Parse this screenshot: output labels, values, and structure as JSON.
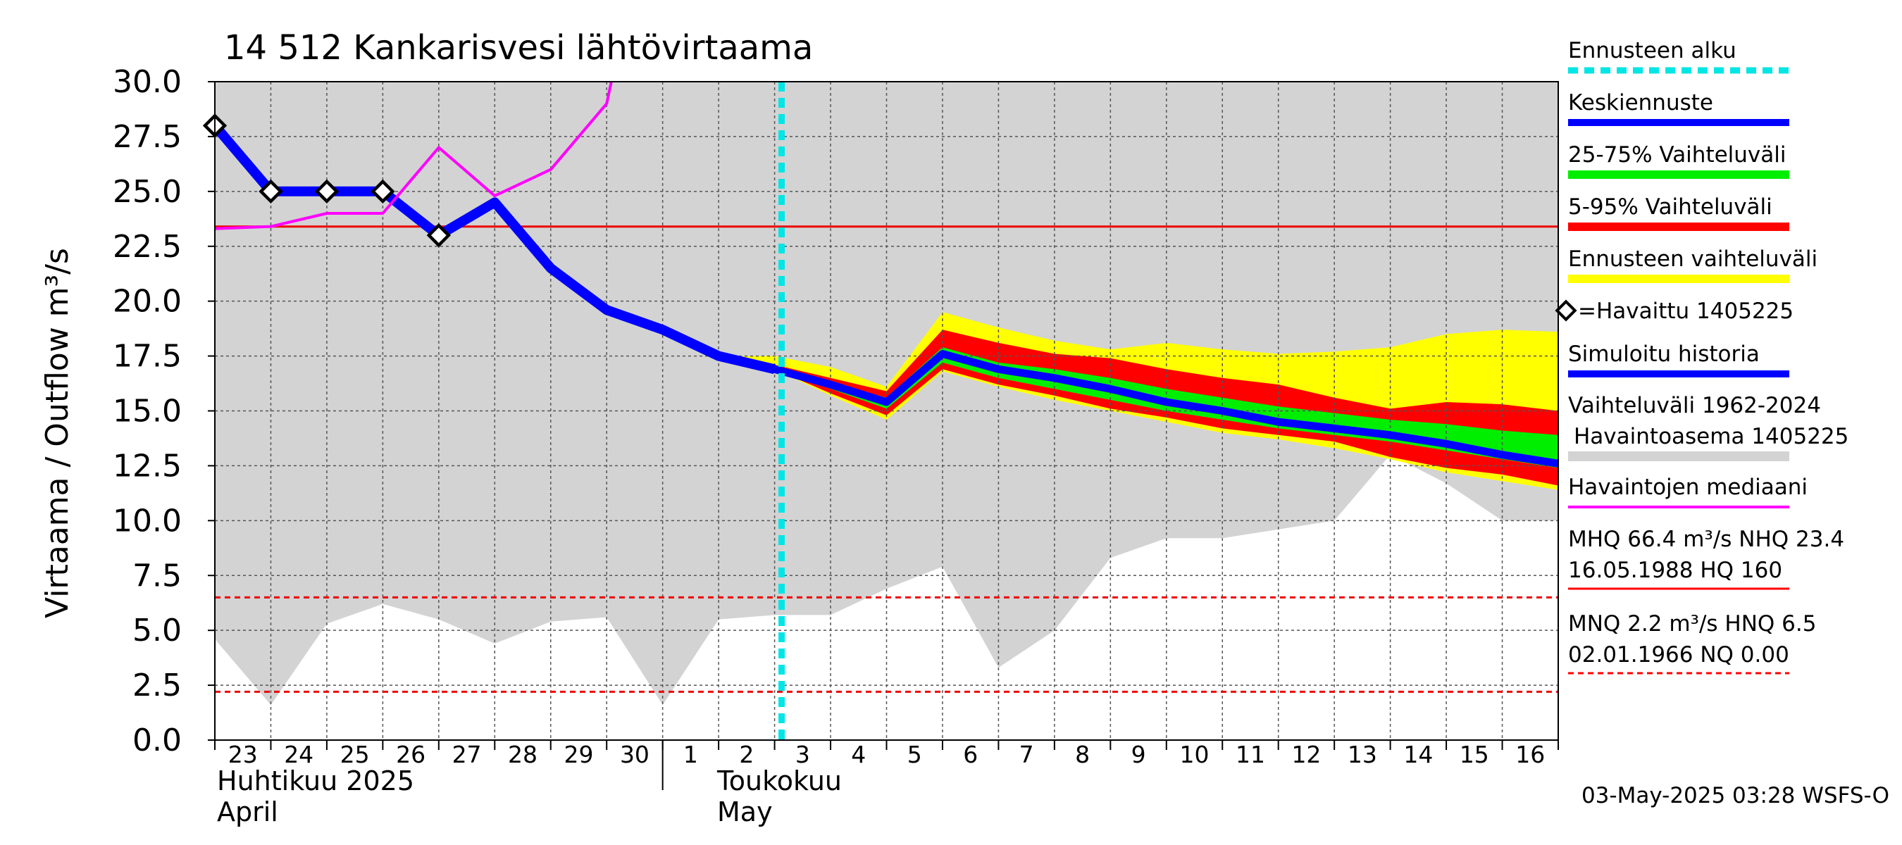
{
  "chart_data": {
    "type": "line",
    "title": "14 512 Kankarisvesi lähtövirtaama",
    "ylabel": "Virtaama / Outflow    m³/s",
    "ylim": [
      0,
      30
    ],
    "yticks": [
      "0.0",
      "2.5",
      "5.0",
      "7.5",
      "10.0",
      "12.5",
      "15.0",
      "17.5",
      "20.0",
      "22.5",
      "25.0",
      "27.5",
      "30.0"
    ],
    "x_range": [
      "2025-04-23",
      "2025-05-17"
    ],
    "x_day_labels": [
      "23",
      "24",
      "25",
      "26",
      "27",
      "28",
      "29",
      "30",
      "1",
      "2",
      "3",
      "4",
      "5",
      "6",
      "7",
      "8",
      "9",
      "10",
      "11",
      "12",
      "13",
      "14",
      "15",
      "16"
    ],
    "month_labels": [
      {
        "fi": "Huhtikuu  2025",
        "en": "April"
      },
      {
        "fi": "Toukokuu",
        "en": "May"
      }
    ],
    "forecast_start": "2025-05-03T03:00",
    "reference_lines": {
      "nhq": 23.4,
      "hnq": 6.5,
      "mnq": 2.2
    },
    "history_range": {
      "name": "Vaihteluväli 1962-2024",
      "x": [
        "2025-04-23",
        "2025-04-24",
        "2025-04-25",
        "2025-04-26",
        "2025-04-27",
        "2025-04-28",
        "2025-04-29",
        "2025-04-30",
        "2025-05-01",
        "2025-05-02",
        "2025-05-03",
        "2025-05-04",
        "2025-05-05",
        "2025-05-06",
        "2025-05-07",
        "2025-05-08",
        "2025-05-09",
        "2025-05-10",
        "2025-05-11",
        "2025-05-12",
        "2025-05-13",
        "2025-05-14",
        "2025-05-15",
        "2025-05-16",
        "2025-05-17"
      ],
      "low": [
        4.6,
        1.6,
        5.3,
        6.2,
        5.5,
        4.4,
        5.4,
        5.6,
        1.6,
        5.5,
        5.7,
        5.7,
        6.9,
        7.9,
        3.3,
        5.0,
        8.3,
        9.2,
        9.2,
        9.6,
        10.0,
        13.0,
        11.7,
        10.0,
        10.0
      ],
      "high": [
        30,
        30,
        30,
        30,
        30,
        30,
        30,
        30,
        30,
        30,
        30,
        30,
        30,
        30,
        30,
        30,
        30,
        30,
        30,
        30,
        30,
        30,
        30,
        30,
        30
      ]
    },
    "forecast_x": [
      "2025-05-02",
      "2025-05-03",
      "2025-05-04",
      "2025-05-05",
      "2025-05-06",
      "2025-05-07",
      "2025-05-08",
      "2025-05-09",
      "2025-05-10",
      "2025-05-11",
      "2025-05-12",
      "2025-05-13",
      "2025-05-14",
      "2025-05-15",
      "2025-05-16",
      "2025-05-17"
    ],
    "bands": [
      {
        "name": "Ennusteen vaihteluväli",
        "color": "#ffff00",
        "low": [
          17.5,
          16.9,
          15.7,
          14.6,
          16.8,
          16.1,
          15.5,
          15.0,
          14.5,
          14.0,
          13.7,
          13.3,
          12.8,
          12.2,
          11.8,
          11.4
        ],
        "high": [
          17.5,
          17.5,
          17.0,
          16.1,
          19.5,
          18.8,
          18.2,
          17.8,
          18.1,
          17.8,
          17.6,
          17.7,
          17.9,
          18.5,
          18.7,
          18.6
        ]
      },
      {
        "name": "5-95% Vaihteluväli",
        "color": "#ff0000",
        "low": [
          17.5,
          16.9,
          15.8,
          14.8,
          16.9,
          16.2,
          15.7,
          15.1,
          14.7,
          14.2,
          13.9,
          13.6,
          12.9,
          12.4,
          12.1,
          11.6
        ],
        "high": [
          17.5,
          17.1,
          16.5,
          15.9,
          18.7,
          18.1,
          17.6,
          17.4,
          16.9,
          16.5,
          16.2,
          15.6,
          15.1,
          15.4,
          15.3,
          15.0
        ]
      },
      {
        "name": "25-75% Vaihteluväli",
        "color": "#00ee00",
        "low": [
          17.5,
          16.9,
          16.0,
          15.1,
          17.2,
          16.5,
          16.0,
          15.5,
          15.0,
          14.6,
          14.2,
          13.9,
          13.6,
          13.2,
          12.8,
          12.4
        ],
        "high": [
          17.5,
          17.0,
          16.3,
          15.6,
          17.9,
          17.2,
          16.9,
          16.5,
          16.0,
          15.6,
          15.2,
          14.9,
          14.6,
          14.4,
          14.1,
          13.9
        ]
      }
    ],
    "series": [
      {
        "name": "Simuloitu historia",
        "color": "#0000ff",
        "x": [
          "2025-04-23",
          "2025-04-24",
          "2025-04-25",
          "2025-04-26",
          "2025-04-27",
          "2025-04-28",
          "2025-04-29",
          "2025-04-30",
          "2025-05-01",
          "2025-05-02",
          "2025-05-03"
        ],
        "values": [
          28.0,
          25.0,
          25.0,
          25.0,
          23.0,
          24.5,
          21.5,
          19.6,
          18.7,
          17.5,
          16.9
        ]
      },
      {
        "name": "Keskiennuste",
        "color": "#0000ff",
        "x": [
          "2025-05-03",
          "2025-05-04",
          "2025-05-05",
          "2025-05-06",
          "2025-05-07",
          "2025-05-08",
          "2025-05-09",
          "2025-05-10",
          "2025-05-11",
          "2025-05-12",
          "2025-05-13",
          "2025-05-14",
          "2025-05-15",
          "2025-05-16",
          "2025-05-17"
        ],
        "values": [
          16.9,
          16.2,
          15.4,
          17.6,
          16.9,
          16.5,
          16.0,
          15.4,
          15.0,
          14.5,
          14.2,
          13.9,
          13.5,
          13.0,
          12.6
        ]
      },
      {
        "name": "Havaintojen mediaani",
        "color": "#ff00ff",
        "x": [
          "2025-04-23",
          "2025-04-24",
          "2025-04-25",
          "2025-04-26",
          "2025-04-27",
          "2025-04-28",
          "2025-04-29",
          "2025-04-30",
          "2025-04-30T02:00"
        ],
        "values": [
          23.3,
          23.4,
          24.0,
          24.0,
          27.0,
          24.8,
          26.0,
          29.0,
          30.0
        ]
      }
    ],
    "observed": {
      "name": "=Havaittu 1405225",
      "x": [
        "2025-04-23",
        "2025-04-24",
        "2025-04-25",
        "2025-04-26",
        "2025-04-27"
      ],
      "values": [
        28.0,
        25.0,
        25.0,
        25.0,
        23.0
      ]
    },
    "legend": {
      "placement": "right",
      "forecast_start": "Ennusteen alku",
      "mean_forecast": "Keskiennuste",
      "band_25_75": "25-75% Vaihteluväli",
      "band_5_95": "5-95% Vaihteluväli",
      "forecast_range": "Ennusteen vaihteluväli",
      "observed": "=Havaittu 1405225",
      "simulated": "Simuloitu historia",
      "history_range_1": "Vaihteluväli 1962-2024",
      "history_range_2": "Havaintoasema 1405225",
      "median": "Havaintojen mediaani",
      "stats_1a": "MHQ 66.4 m³/s NHQ 23.4",
      "stats_1b": "16.05.1988 HQ  160",
      "stats_2a": "MNQ  2.2 m³/s HNQ  6.5",
      "stats_2b": "02.01.1966 NQ 0.00"
    },
    "footer": "03-May-2025 03:28 WSFS-O"
  }
}
